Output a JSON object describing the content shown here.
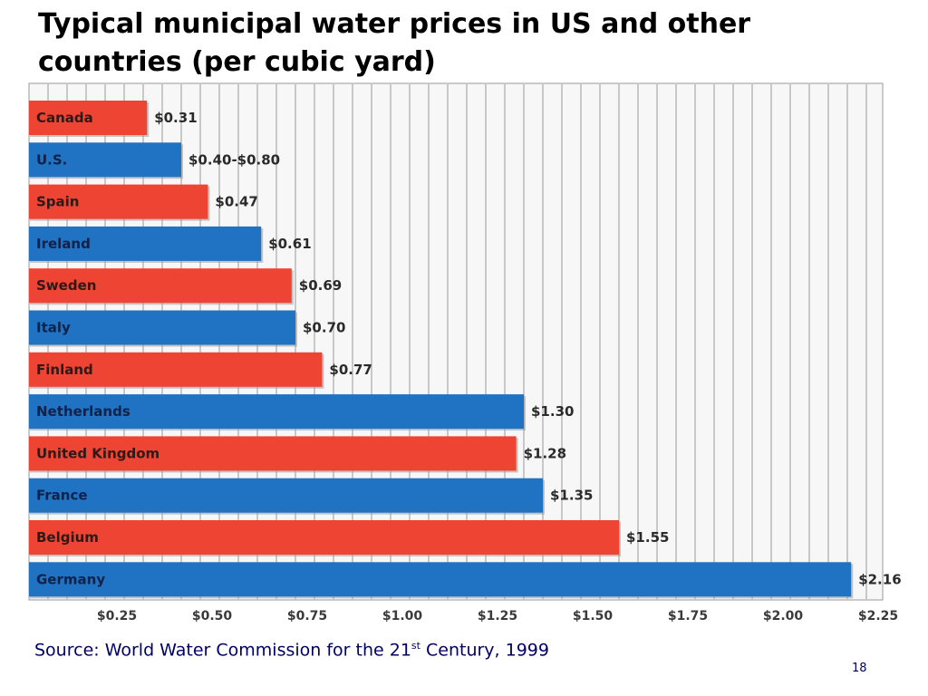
{
  "slide": {
    "title": "Typical municipal water prices in US and other countries (per cubic yard)",
    "source_prefix": "Source: World Water Commission for the 21",
    "source_superscript": "st",
    "source_suffix": " Century, 1999",
    "page_number": "18"
  },
  "colors": {
    "red_bar": "#ee4433",
    "blue_bar": "#1f73c2",
    "grid_line": "#c8c8c8",
    "plot_border": "#9a9a9a"
  },
  "chart_data": {
    "type": "bar",
    "orientation": "horizontal",
    "title": "Typical municipal water prices in US and other countries (per cubic yard)",
    "xlabel": "",
    "ylabel": "",
    "xlim": [
      0,
      2.25
    ],
    "ticks": [
      {
        "value": 0.25,
        "label": "$0.25"
      },
      {
        "value": 0.5,
        "label": "$0.50"
      },
      {
        "value": 0.75,
        "label": "$0.75"
      },
      {
        "value": 1.0,
        "label": "$1.00"
      },
      {
        "value": 1.25,
        "label": "$1.25"
      },
      {
        "value": 1.5,
        "label": "$1.50"
      },
      {
        "value": 1.75,
        "label": "$1.75"
      },
      {
        "value": 2.0,
        "label": "$2.00"
      },
      {
        "value": 2.25,
        "label": "$2.25"
      }
    ],
    "grid": true,
    "bars": [
      {
        "category": "Canada",
        "value": 0.31,
        "label": "$0.31",
        "color": "red"
      },
      {
        "category": "U.S.",
        "value": 0.4,
        "label": "$0.40-$0.80",
        "color": "blue"
      },
      {
        "category": "Spain",
        "value": 0.47,
        "label": "$0.47",
        "color": "red"
      },
      {
        "category": "Ireland",
        "value": 0.61,
        "label": "$0.61",
        "color": "blue"
      },
      {
        "category": "Sweden",
        "value": 0.69,
        "label": "$0.69",
        "color": "red"
      },
      {
        "category": "Italy",
        "value": 0.7,
        "label": "$0.70",
        "color": "blue"
      },
      {
        "category": "Finland",
        "value": 0.77,
        "label": "$0.77",
        "color": "red"
      },
      {
        "category": "Netherlands",
        "value": 1.3,
        "label": "$1.30",
        "color": "blue"
      },
      {
        "category": "United Kingdom",
        "value": 1.28,
        "label": "$1.28",
        "color": "red"
      },
      {
        "category": "France",
        "value": 1.35,
        "label": "$1.35",
        "color": "blue"
      },
      {
        "category": "Belgium",
        "value": 1.55,
        "label": "$1.55",
        "color": "red"
      },
      {
        "category": "Germany",
        "value": 2.16,
        "label": "$2.16",
        "color": "blue"
      }
    ]
  }
}
